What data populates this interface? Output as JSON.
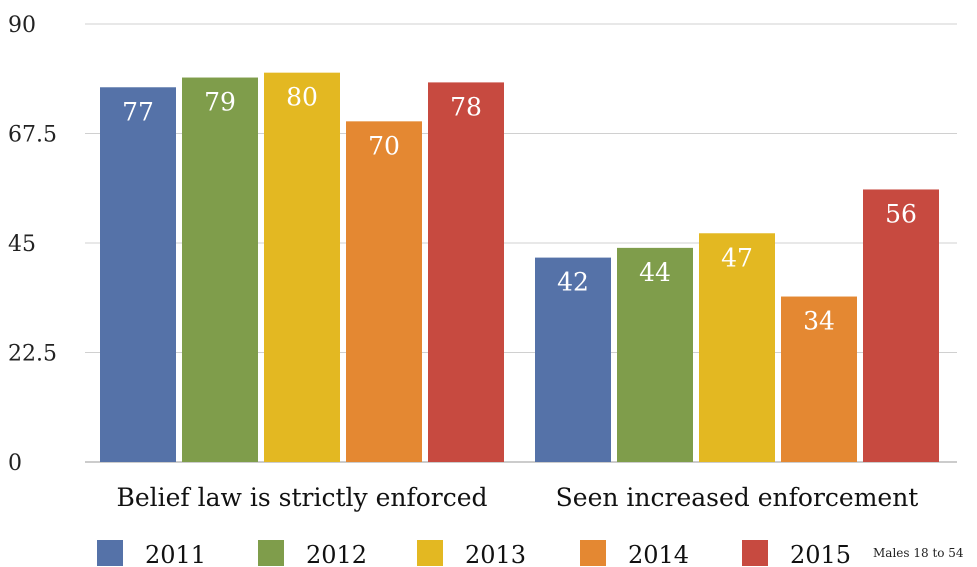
{
  "chart_data": {
    "type": "bar",
    "categories": [
      "Belief law is strictly enforced",
      "Seen increased enforcement"
    ],
    "series": [
      {
        "name": "2011",
        "values": [
          77,
          42
        ],
        "color": "#5572a8"
      },
      {
        "name": "2012",
        "values": [
          79,
          44
        ],
        "color": "#7f9d4b"
      },
      {
        "name": "2013",
        "values": [
          80,
          47
        ],
        "color": "#e3b822"
      },
      {
        "name": "2014",
        "values": [
          70,
          34
        ],
        "color": "#e48832"
      },
      {
        "name": "2015",
        "values": [
          78,
          56
        ],
        "color": "#c74a40"
      }
    ],
    "ylim": [
      0,
      90
    ],
    "yticks": [
      "0",
      "22.5",
      "45",
      "67.5",
      "90"
    ],
    "grid": true,
    "legend_position": "bottom",
    "note": "Males 18 to 54"
  }
}
